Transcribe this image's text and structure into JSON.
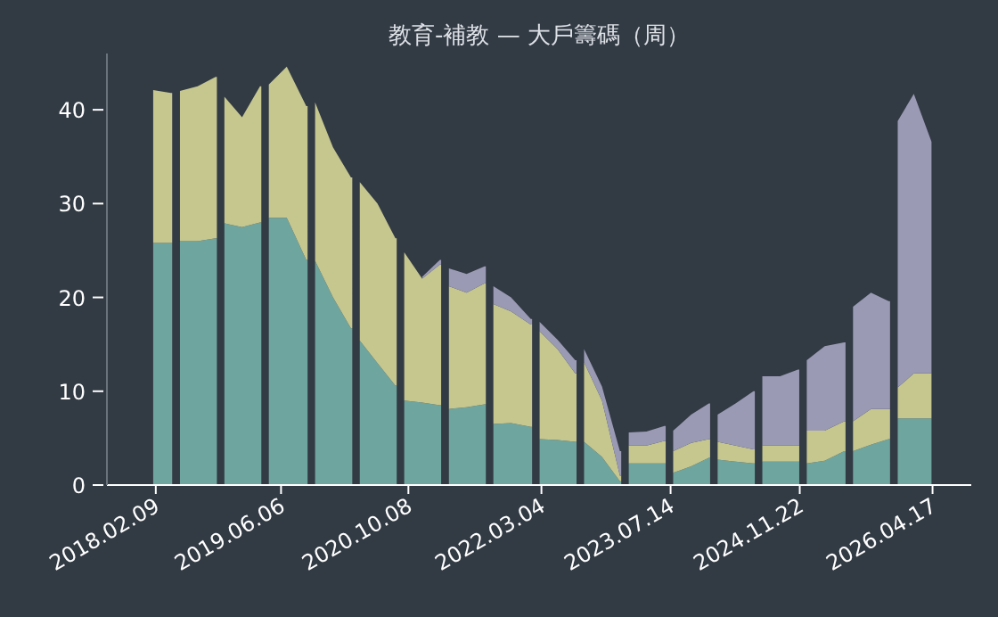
{
  "chart_data": {
    "type": "area",
    "stacked": true,
    "title": "教育-補教 — 大戶籌碼（周）",
    "x": [
      "2018-01-30",
      "2018-04-08",
      "2018-04-25",
      "2018-05-13",
      "2018-07-20",
      "2018-09-27",
      "2018-10-14",
      "2018-10-31",
      "2019-01-07",
      "2019-03-17",
      "2019-04-03",
      "2019-04-20",
      "2019-06-28",
      "2019-09-11",
      "2019-09-28",
      "2019-10-15",
      "2019-12-23",
      "2020-03-01",
      "2020-03-18",
      "2020-04-04",
      "2020-06-11",
      "2020-08-19",
      "2020-09-05",
      "2020-09-22",
      "2020-11-30",
      "2021-02-06",
      "2021-02-23",
      "2021-03-13",
      "2021-05-20",
      "2021-07-28",
      "2021-08-14",
      "2021-08-31",
      "2021-11-07",
      "2022-01-22",
      "2022-02-08",
      "2022-02-25",
      "2022-05-05",
      "2022-07-12",
      "2022-07-29",
      "2022-08-15",
      "2022-10-23",
      "2022-12-31",
      "2023-01-17",
      "2023-02-03",
      "2023-04-12",
      "2023-06-20",
      "2023-07-07",
      "2023-07-24",
      "2023-10-01",
      "2023-12-08",
      "2023-12-25",
      "2024-01-11",
      "2024-03-20",
      "2024-05-28",
      "2024-06-14",
      "2024-07-01",
      "2024-09-07",
      "2024-11-15",
      "2024-12-02",
      "2024-12-19",
      "2025-02-26",
      "2025-05-12",
      "2025-05-29",
      "2025-06-15",
      "2025-08-23",
      "2025-10-30",
      "2025-11-17",
      "2025-12-04",
      "2026-02-04",
      "2026-04-13"
    ],
    "series": [
      {
        "color": "#6fa59f",
        "values": [
          25.8,
          25.8,
          null,
          26,
          26,
          26.3,
          null,
          27.9,
          27.5,
          28,
          null,
          28.5,
          28.5,
          24,
          null,
          23.9,
          20,
          16.7,
          null,
          15.4,
          13,
          10.6,
          null,
          9,
          8.8,
          8.5,
          null,
          8.1,
          8.3,
          8.6,
          null,
          6.5,
          6.6,
          6.2,
          null,
          4.9,
          4.8,
          4.6,
          null,
          4.6,
          3,
          0.4,
          null,
          2.3,
          2.3,
          2.3,
          null,
          1.3,
          2,
          2.9,
          null,
          2.7,
          2.5,
          2.3,
          null,
          2.5,
          2.5,
          2.5,
          null,
          2.3,
          2.6,
          3.6,
          null,
          3.6,
          4.3,
          4.9,
          null,
          7.1,
          7.1,
          7.1
        ]
      },
      {
        "color": "#c5c78f",
        "values": [
          16.3,
          16,
          null,
          16,
          16.5,
          17.2,
          null,
          13.5,
          11.7,
          14.5,
          null,
          14.2,
          16.1,
          16.4,
          null,
          16.9,
          16,
          16.1,
          null,
          16.9,
          17,
          15.7,
          null,
          15.8,
          13.2,
          15,
          null,
          13.1,
          12.2,
          12.9,
          null,
          12.8,
          11.9,
          10.9,
          null,
          11.5,
          9.7,
          7.3,
          null,
          8.5,
          6,
          0.6,
          null,
          1.9,
          1.9,
          2.4,
          null,
          2.3,
          2.5,
          2,
          null,
          1.9,
          1.7,
          1.5,
          null,
          1.7,
          1.7,
          1.7,
          null,
          3.5,
          3.2,
          3.2,
          null,
          3.2,
          3.8,
          3.2,
          null,
          3.3,
          4.8,
          4.8
        ]
      },
      {
        "color": "#9a9ab5",
        "values": [
          null,
          null,
          null,
          null,
          null,
          null,
          null,
          null,
          null,
          null,
          null,
          null,
          null,
          null,
          null,
          null,
          null,
          null,
          null,
          null,
          null,
          null,
          null,
          null,
          0.2,
          0.5,
          null,
          1.9,
          2,
          1.8,
          null,
          1.9,
          1.5,
          0.6,
          null,
          1,
          1,
          1.4,
          null,
          1.4,
          1.5,
          2.6,
          null,
          1.4,
          1.5,
          1.6,
          null,
          2.2,
          3,
          3.8,
          null,
          2.9,
          4.5,
          6.2,
          null,
          7.4,
          7.4,
          8.1,
          null,
          7.5,
          9,
          8.4,
          null,
          12.2,
          12.4,
          11.5,
          null,
          28.4,
          29.8,
          24.7
        ]
      }
    ],
    "xlim": [
      "2017-08-05",
      "2026-09-13"
    ],
    "xticks": [
      {
        "value": "2018-02-09",
        "label": "2018.02.09"
      },
      {
        "value": "2019-06-06",
        "label": "2019.06.06"
      },
      {
        "value": "2020-10-08",
        "label": "2020.10.08"
      },
      {
        "value": "2022-03-04",
        "label": "2022.03.04"
      },
      {
        "value": "2023-07-14",
        "label": "2023.07.14"
      },
      {
        "value": "2024-11-22",
        "label": "2024.11.22"
      },
      {
        "value": "2026-04-17",
        "label": "2026.04.17"
      }
    ],
    "ylim": [
      0,
      46
    ],
    "yticks": [
      0,
      10,
      20,
      30,
      40
    ],
    "grid": false
  }
}
